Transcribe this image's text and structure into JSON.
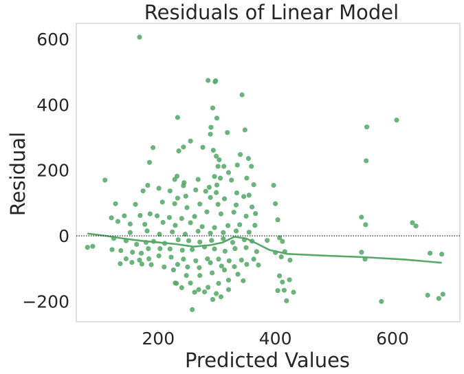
{
  "chart_data": {
    "type": "scatter",
    "title": "Residuals of Linear Model",
    "xlabel": "Predicted Values",
    "ylabel": "Residual",
    "xlim": [
      60,
      715
    ],
    "ylim": [
      -262,
      648
    ],
    "xticks": [
      200,
      400,
      600
    ],
    "yticks": [
      -200,
      0,
      200,
      400,
      600
    ],
    "ytick_labels": [
      "−200",
      "0",
      "200",
      "400",
      "600"
    ],
    "grid": false,
    "color": "#55a868",
    "zero_line": {
      "y": 0,
      "style": "dotted",
      "color": "#333333"
    },
    "series": [
      {
        "kind": "points",
        "points": [
          [
            168,
            606
          ],
          [
            285,
            474
          ],
          [
            298,
            473
          ],
          [
            297,
            470
          ],
          [
            343,
            430
          ],
          [
            233,
            361
          ],
          [
            556,
            332
          ],
          [
            607,
            353
          ],
          [
            293,
            390
          ],
          [
            300,
            359
          ],
          [
            290,
            331
          ],
          [
            289,
            310
          ],
          [
            318,
            315
          ],
          [
            348,
            323
          ],
          [
            255,
            289
          ],
          [
            276,
            270
          ],
          [
            294,
            261
          ],
          [
            299,
            243
          ],
          [
            304,
            232
          ],
          [
            340,
            248
          ],
          [
            354,
            236
          ],
          [
            235,
            259
          ],
          [
            243,
            271
          ],
          [
            191,
            269
          ],
          [
            109,
            170
          ],
          [
            555,
            229
          ],
          [
            185,
            224
          ],
          [
            359,
            212
          ],
          [
            302,
            212
          ],
          [
            312,
            212
          ],
          [
            232,
            182
          ],
          [
            244,
            162
          ],
          [
            296,
            181
          ],
          [
            320,
            193
          ],
          [
            335,
            216
          ],
          [
            228,
            172
          ],
          [
            243,
            153
          ],
          [
            268,
            172
          ],
          [
            287,
            148
          ],
          [
            300,
            155
          ],
          [
            306,
            176
          ],
          [
            325,
            170
          ],
          [
            351,
            176
          ],
          [
            363,
            156
          ],
          [
            397,
            154
          ],
          [
            233,
            115
          ],
          [
            174,
            137
          ],
          [
            182,
            154
          ],
          [
            201,
            145
          ],
          [
            264,
            140
          ],
          [
            281,
            136
          ],
          [
            289,
            117
          ],
          [
            299,
            132
          ],
          [
            313,
            113
          ],
          [
            334,
            131
          ],
          [
            346,
            120
          ],
          [
            355,
            124
          ],
          [
            220,
            137
          ],
          [
            247,
            121
          ],
          [
            127,
            98
          ],
          [
            161,
            96
          ],
          [
            186,
            67
          ],
          [
            207,
            103
          ],
          [
            228,
            98
          ],
          [
            249,
            86
          ],
          [
            271,
            97
          ],
          [
            302,
            96
          ],
          [
            333,
            94
          ],
          [
            360,
            88
          ],
          [
            400,
            98
          ],
          [
            120,
            55
          ],
          [
            142,
            61
          ],
          [
            169,
            62
          ],
          [
            198,
            61
          ],
          [
            219,
            56
          ],
          [
            240,
            53
          ],
          [
            262,
            59
          ],
          [
            283,
            73
          ],
          [
            307,
            67
          ],
          [
            329,
            72
          ],
          [
            350,
            60
          ],
          [
            366,
            68
          ],
          [
            404,
            49
          ],
          [
            547,
            57
          ],
          [
            554,
            34
          ],
          [
            634,
            40
          ],
          [
            640,
            30
          ],
          [
            131,
            44
          ],
          [
            152,
            36
          ],
          [
            177,
            35
          ],
          [
            208,
            41
          ],
          [
            229,
            32
          ],
          [
            255,
            40
          ],
          [
            275,
            28
          ],
          [
            296,
            25
          ],
          [
            319,
            31
          ],
          [
            339,
            34
          ],
          [
            365,
            32
          ],
          [
            152,
            10
          ],
          [
            181,
            15
          ],
          [
            202,
            5
          ],
          [
            224,
            12
          ],
          [
            246,
            5
          ],
          [
            268,
            14
          ],
          [
            289,
            8
          ],
          [
            311,
            10
          ],
          [
            333,
            15
          ],
          [
            355,
            11
          ],
          [
            79,
            -35
          ],
          [
            124,
            -8
          ],
          [
            145,
            -15
          ],
          [
            163,
            -26
          ],
          [
            179,
            -20
          ],
          [
            192,
            -17
          ],
          [
            211,
            -23
          ],
          [
            234,
            -12
          ],
          [
            252,
            -15
          ],
          [
            271,
            -19
          ],
          [
            291,
            -14
          ],
          [
            311,
            -9
          ],
          [
            327,
            -20
          ],
          [
            347,
            -12
          ],
          [
            360,
            -16
          ],
          [
            386,
            -14
          ],
          [
            407,
            -6
          ],
          [
            412,
            -17
          ],
          [
            136,
            -45
          ],
          [
            156,
            -50
          ],
          [
            171,
            -53
          ],
          [
            183,
            -39
          ],
          [
            203,
            -39
          ],
          [
            220,
            -40
          ],
          [
            241,
            -44
          ],
          [
            258,
            -42
          ],
          [
            279,
            -34
          ],
          [
            296,
            -40
          ],
          [
            314,
            -47
          ],
          [
            331,
            -39
          ],
          [
            350,
            -36
          ],
          [
            368,
            -48
          ],
          [
            400,
            -51
          ],
          [
            416,
            -48
          ],
          [
            121,
            -42
          ],
          [
            145,
            -70
          ],
          [
            168,
            -74
          ],
          [
            184,
            -70
          ],
          [
            201,
            -61
          ],
          [
            222,
            -65
          ],
          [
            243,
            -71
          ],
          [
            264,
            -76
          ],
          [
            284,
            -70
          ],
          [
            303,
            -71
          ],
          [
            321,
            -76
          ],
          [
            342,
            -74
          ],
          [
            363,
            -71
          ],
          [
            410,
            -64
          ],
          [
            425,
            -74
          ],
          [
            547,
            -50
          ],
          [
            553,
            -71
          ],
          [
            664,
            -53
          ],
          [
            684,
            -56
          ],
          [
            135,
            -85
          ],
          [
            155,
            -81
          ],
          [
            172,
            -86
          ],
          [
            188,
            -88
          ],
          [
            210,
            -95
          ],
          [
            233,
            -87
          ],
          [
            250,
            -95
          ],
          [
            270,
            -97
          ],
          [
            289,
            -82
          ],
          [
            308,
            -92
          ],
          [
            330,
            -94
          ],
          [
            351,
            -87
          ],
          [
            371,
            -89
          ],
          [
            226,
            -104
          ],
          [
            248,
            -121
          ],
          [
            271,
            -121
          ],
          [
            292,
            -113
          ],
          [
            313,
            -104
          ],
          [
            336,
            -117
          ],
          [
            229,
            -144
          ],
          [
            255,
            -144
          ],
          [
            269,
            -164
          ],
          [
            285,
            -157
          ],
          [
            303,
            -145
          ],
          [
            320,
            -135
          ],
          [
            345,
            -137
          ],
          [
            407,
            -122
          ],
          [
            412,
            -141
          ],
          [
            424,
            -134
          ],
          [
            231,
            -145
          ],
          [
            240,
            -158
          ],
          [
            262,
            -172
          ],
          [
            279,
            -171
          ],
          [
            299,
            -176
          ],
          [
            320,
            -164
          ],
          [
            404,
            -167
          ],
          [
            415,
            -166
          ],
          [
            431,
            -172
          ],
          [
            293,
            -194
          ],
          [
            307,
            -186
          ],
          [
            258,
            -225
          ],
          [
            419,
            -198
          ],
          [
            581,
            -200
          ],
          [
            660,
            -181
          ],
          [
            686,
            -178
          ],
          [
            679,
            -191
          ],
          [
            88,
            -32
          ]
        ]
      },
      {
        "kind": "lowess_line",
        "x": [
          79,
          110,
          140,
          170,
          200,
          230,
          260,
          290,
          310,
          330,
          350,
          370,
          390,
          420,
          480,
          550,
          620,
          684
        ],
        "y": [
          7,
          0,
          -8,
          -15,
          -20,
          -25,
          -33,
          -28,
          -20,
          -3,
          -8,
          -25,
          -43,
          -55,
          -60,
          -65,
          -72,
          -82
        ]
      }
    ]
  }
}
